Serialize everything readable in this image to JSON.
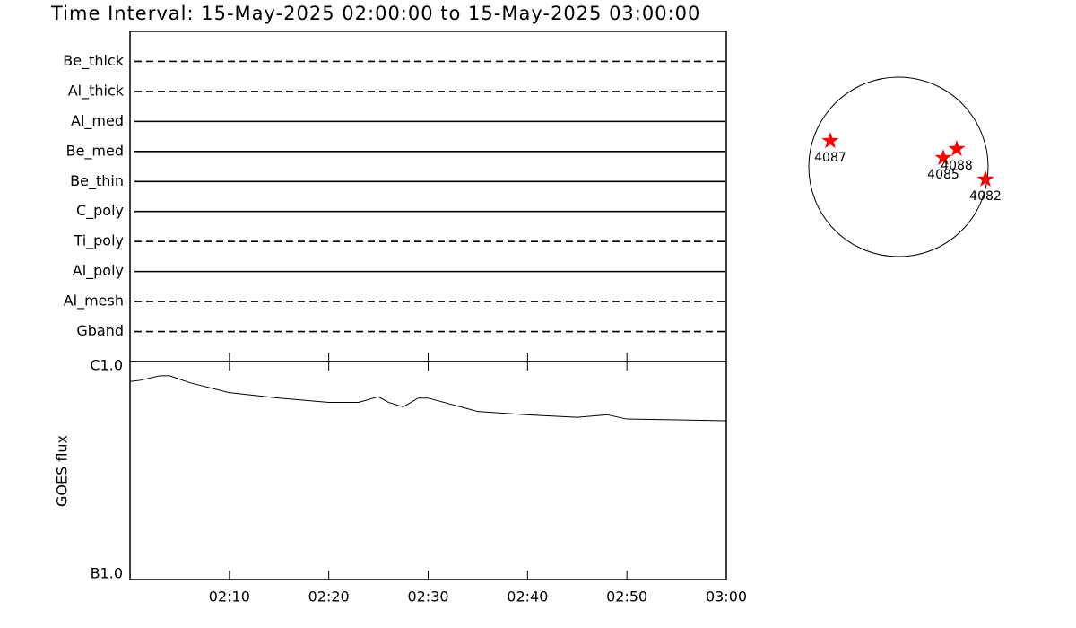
{
  "chart_data": [
    {
      "type": "coverage",
      "title": "Time Interval: 15-May-2025 02:00:00 to 15-May-2025 03:00:00",
      "categories": [
        "Be_thick",
        "Al_thick",
        "Al_med",
        "Be_med",
        "Be_thin",
        "C_poly",
        "Ti_poly",
        "Al_poly",
        "Al_mesh",
        "Gband"
      ],
      "styles": [
        "dashed",
        "dashed",
        "solid",
        "solid",
        "solid",
        "solid",
        "dashed",
        "solid",
        "dashed",
        "dashed"
      ],
      "xlim": [
        "02:00",
        "03:00"
      ],
      "color": "#000000"
    },
    {
      "type": "line",
      "ylabel": "GOES flux",
      "x": [
        "02:00",
        "02:01",
        "02:03",
        "02:04",
        "02:06",
        "02:10",
        "02:15",
        "02:20",
        "02:23",
        "02:25",
        "02:26",
        "02:27.5",
        "02:29",
        "02:30",
        "02:35",
        "02:40",
        "02:45",
        "02:48",
        "02:50",
        "02:55",
        "03:00"
      ],
      "series": [
        {
          "name": "GOES flux",
          "color": "#000000",
          "values": [
            8.1e-07,
            8.2e-07,
            8.6e-07,
            8.6e-07,
            8e-07,
            7.2e-07,
            6.8e-07,
            6.5e-07,
            6.5e-07,
            6.9e-07,
            6.5e-07,
            6.2e-07,
            6.8e-07,
            6.8e-07,
            5.9e-07,
            5.7e-07,
            5.55e-07,
            5.7e-07,
            5.45e-07,
            5.4e-07,
            5.35e-07
          ]
        }
      ],
      "xlim": [
        "02:00",
        "03:00"
      ],
      "xticks": [
        "02:10",
        "02:20",
        "02:30",
        "02:40",
        "02:50",
        "03:00"
      ],
      "ylim": [
        1e-07,
        1e-06
      ],
      "yticks": [
        {
          "value": 1e-07,
          "label": "B1.0"
        },
        {
          "value": 1e-06,
          "label": "C1.0"
        }
      ],
      "log_scale": true
    },
    {
      "type": "scatter",
      "labels": [
        "4087",
        "4085",
        "4088",
        "4082"
      ],
      "x": [
        -730,
        480,
        624,
        931
      ],
      "values": [
        278,
        96,
        192,
        -134
      ],
      "xlim": [
        -960,
        960
      ],
      "ylim": [
        -960,
        960
      ],
      "color": "#ff0000"
    }
  ]
}
